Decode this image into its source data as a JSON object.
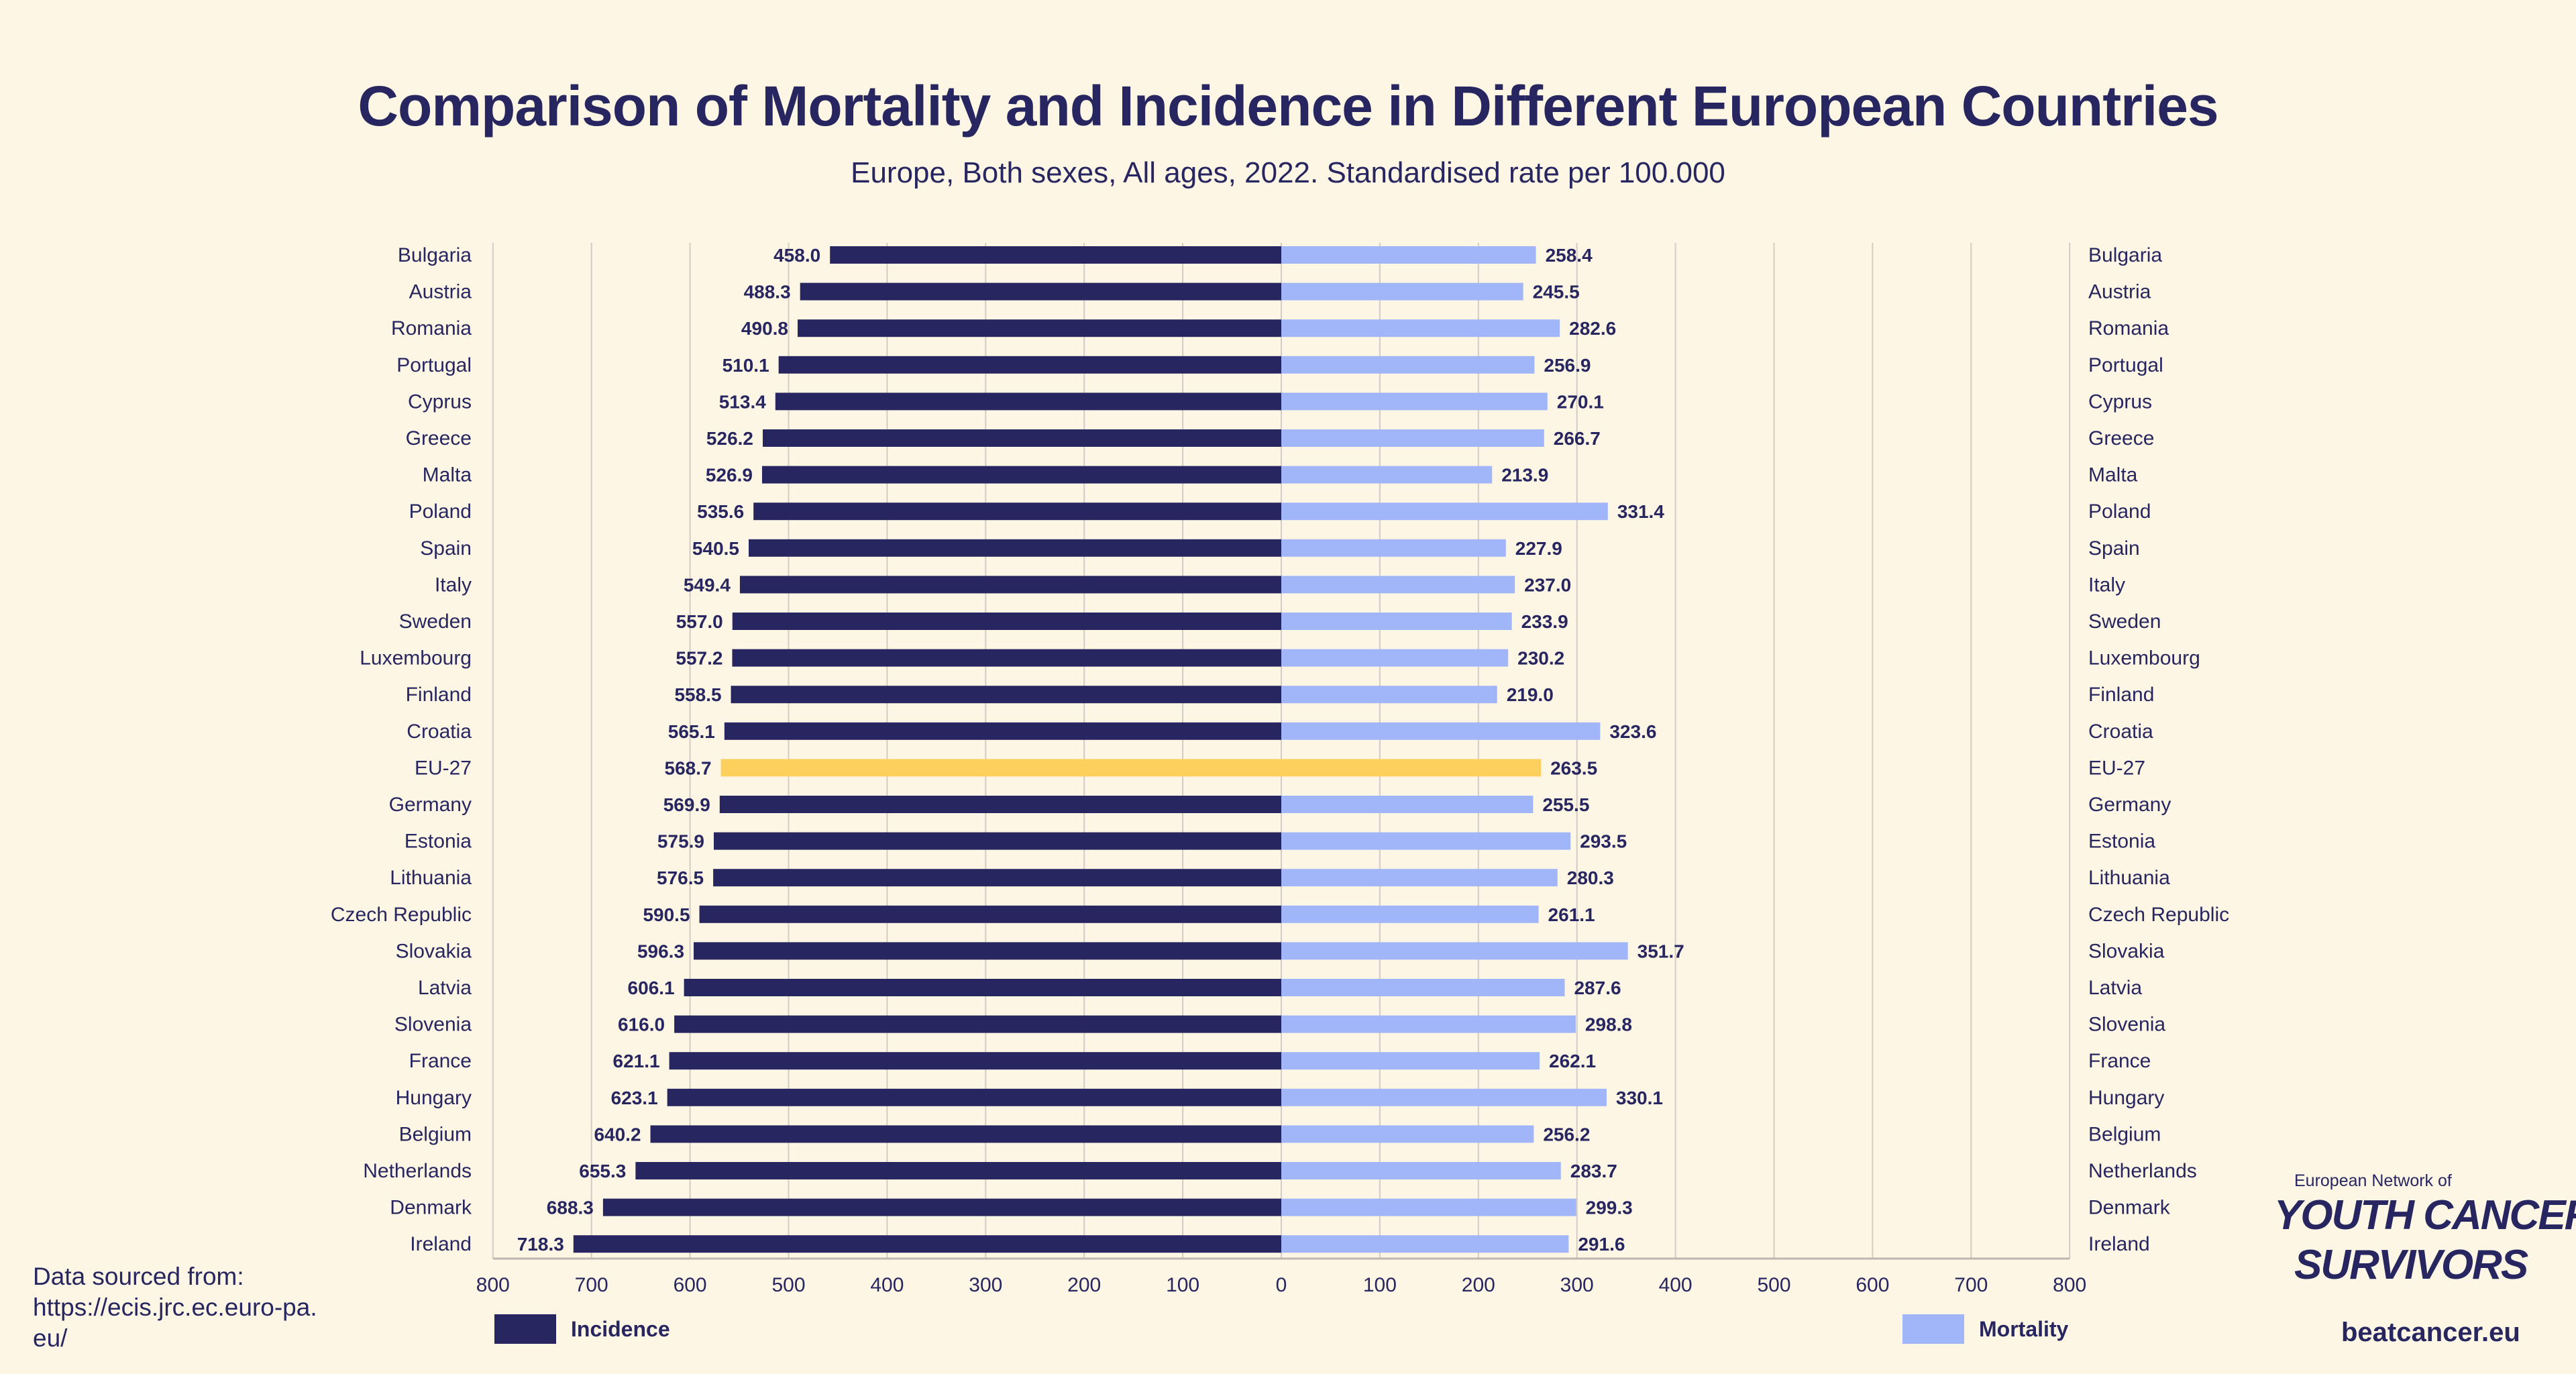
{
  "title": "Comparison of Mortality and Incidence in Different European Countries",
  "subtitle": "Europe, Both sexes, All ages, 2022. Standardised rate per 100.000",
  "source": {
    "label": "Data sourced from:",
    "url": "https://ecis.jrc.ec.euro-pa.eu/"
  },
  "logo": {
    "network": "European Network of",
    "name_line1": "YOUTH CANCER",
    "name_line2": "SURVIVORS",
    "site": "beatcancer.eu"
  },
  "colors": {
    "background": "#fdf6e4",
    "incidence": "#272660",
    "mortality": "#a0b6f8",
    "highlight": "#fdd05e",
    "grid": "#d4ccc4"
  },
  "chart_data": {
    "type": "bar",
    "orientation": "horizontal-diverging",
    "title": "Comparison of Mortality and Incidence in Different European Countries",
    "subtitle": "Europe, Both sexes, All ages, 2022. Standardised rate per 100.000",
    "xlim_left": [
      800,
      0
    ],
    "xlim_right": [
      0,
      800
    ],
    "ticks_left": [
      "800",
      "700",
      "600",
      "500",
      "400",
      "300",
      "200",
      "100",
      "0"
    ],
    "ticks_right": [
      "100",
      "200",
      "300",
      "400",
      "500",
      "600",
      "700",
      "800"
    ],
    "grid": true,
    "legend_placement": "bottom",
    "highlight_category": "EU-27",
    "categories": [
      "Bulgaria",
      "Austria",
      "Romania",
      "Portugal",
      "Cyprus",
      "Greece",
      "Malta",
      "Poland",
      "Spain",
      "Italy",
      "Sweden",
      "Luxembourg",
      "Finland",
      "Croatia",
      "EU-27",
      "Germany",
      "Estonia",
      "Lithuania",
      "Czech Republic",
      "Slovakia",
      "Latvia",
      "Slovenia",
      "France",
      "Hungary",
      "Belgium",
      "Netherlands",
      "Denmark",
      "Ireland"
    ],
    "series": [
      {
        "name": "Incidence",
        "side": "left",
        "values": [
          458.0,
          488.3,
          490.8,
          510.1,
          513.4,
          526.2,
          526.9,
          535.6,
          540.5,
          549.4,
          557.0,
          557.2,
          558.5,
          565.1,
          568.7,
          569.9,
          575.9,
          576.5,
          590.5,
          596.3,
          606.1,
          616.0,
          621.1,
          623.1,
          640.2,
          655.3,
          688.3,
          718.3
        ]
      },
      {
        "name": "Mortality",
        "side": "right",
        "values": [
          258.4,
          245.5,
          282.6,
          256.9,
          270.1,
          266.7,
          213.9,
          331.4,
          227.9,
          237.0,
          233.9,
          230.2,
          219.0,
          323.6,
          263.5,
          255.5,
          293.5,
          280.3,
          261.1,
          351.7,
          287.6,
          298.8,
          262.1,
          330.1,
          256.2,
          283.7,
          299.3,
          291.6
        ]
      }
    ]
  }
}
